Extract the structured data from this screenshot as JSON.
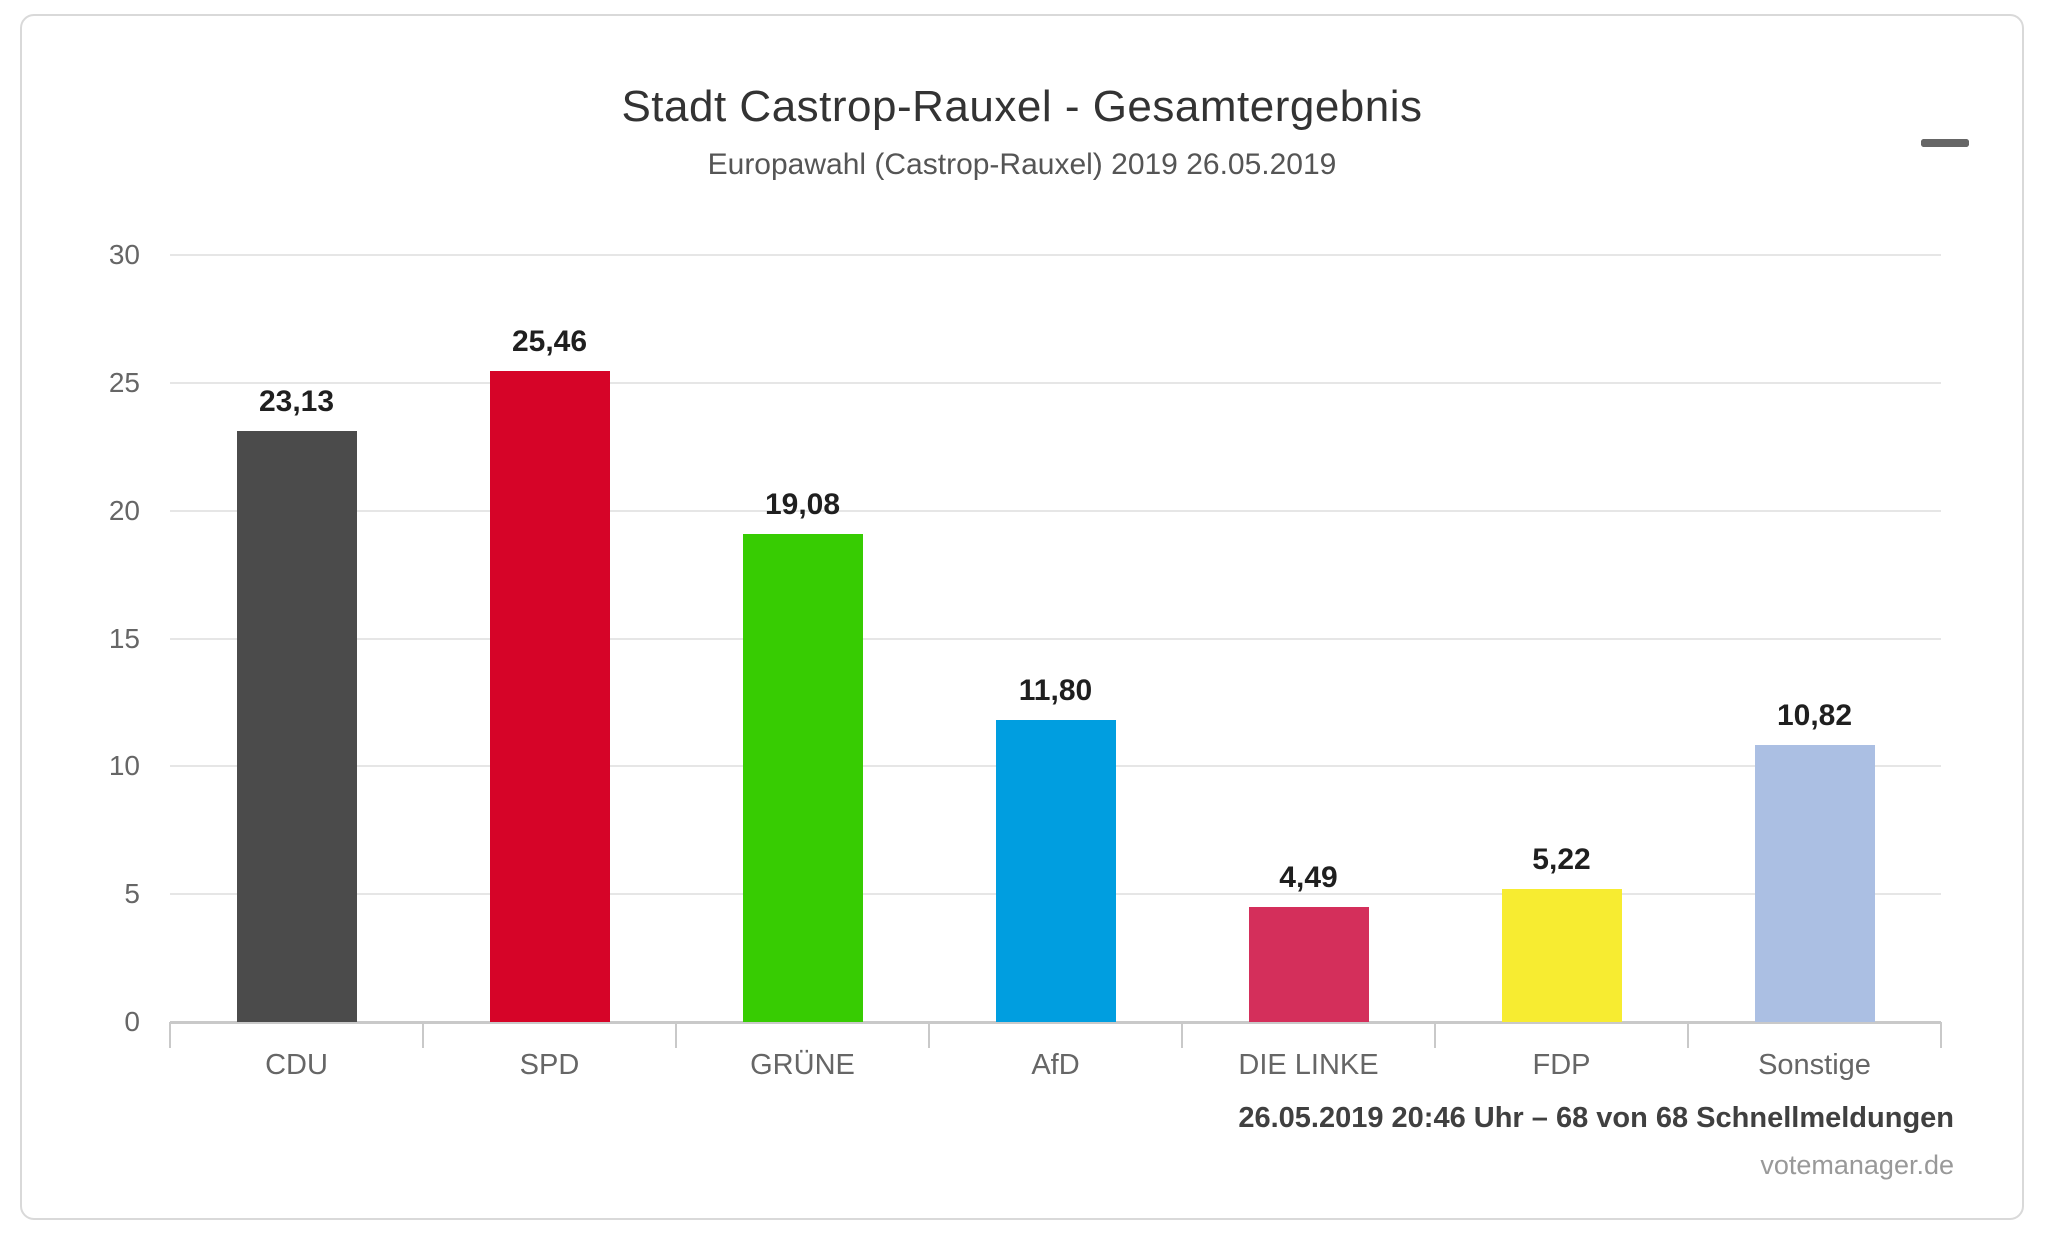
{
  "header": {
    "title": "Stadt Castrop-Rauxel - Gesamtergebnis",
    "subtitle": "Europawahl (Castrop-Rauxel) 2019 26.05.2019"
  },
  "menu": {
    "icon": "hamburger-menu-icon"
  },
  "chart_data": {
    "type": "bar",
    "title": "Stadt Castrop-Rauxel - Gesamtergebnis",
    "subtitle": "Europawahl (Castrop-Rauxel) 2019 26.05.2019",
    "categories": [
      "CDU",
      "SPD",
      "GRÜNE",
      "AfD",
      "DIE LINKE",
      "FDP",
      "Sonstige"
    ],
    "values": [
      23.13,
      25.46,
      19.08,
      11.8,
      4.49,
      5.22,
      10.82
    ],
    "value_labels": [
      "23,13",
      "25,46",
      "19,08",
      "11,80",
      "4,49",
      "5,22",
      "10,82"
    ],
    "bar_colors": [
      "#4b4b4b",
      "#d60428",
      "#37cc02",
      "#009ee0",
      "#d42f5b",
      "#f7ec31",
      "#abbfe3"
    ],
    "ylim": [
      0,
      30
    ],
    "yticks": [
      0,
      5,
      10,
      15,
      20,
      25,
      30
    ],
    "xlabel": "",
    "ylabel": "",
    "grid": true,
    "legend": false
  },
  "footer": {
    "status_line": "26.05.2019 20:46 Uhr – 68 von 68 Schnellmeldungen",
    "credits": "votemanager.de"
  },
  "colors": {
    "card_border": "#d9d9d9",
    "grid_line": "#e6e6e6",
    "axis_line": "#c9c9c9",
    "title_text": "#333333",
    "subtitle_text": "#555555",
    "axis_label_text": "#666666",
    "value_label_text": "#1f1f1f",
    "status_text": "#404040",
    "credits_text": "#999999",
    "menu_icon": "#666666"
  }
}
